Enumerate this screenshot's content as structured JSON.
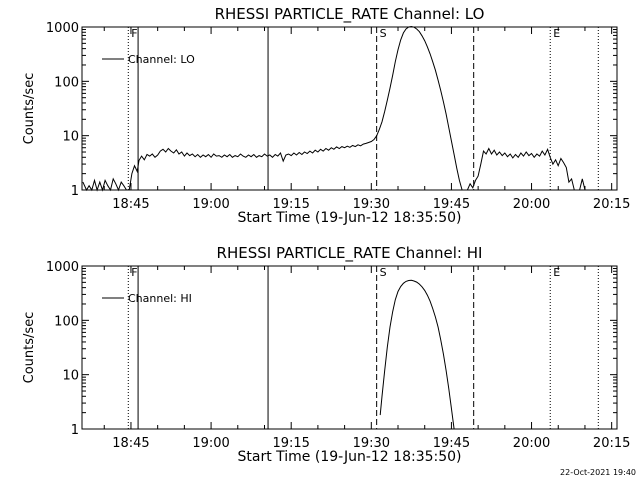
{
  "chart_data": [
    {
      "type": "line",
      "title": "RHESSI PARTICLE_RATE Channel: LO",
      "xlabel": "Start Time (19-Jun-12 18:35:50)",
      "ylabel": "Counts/sec",
      "y_scale": "log",
      "ylim": [
        1,
        1000
      ],
      "xlim": [
        "18:35:50",
        "20:16:00"
      ],
      "x_ticks": [
        "18:45",
        "19:00",
        "19:15",
        "19:30",
        "19:45",
        "20:00",
        "20:15"
      ],
      "y_ticks": [
        "1",
        "10",
        "100",
        "1000"
      ],
      "legend": {
        "position": "top-left",
        "entries": [
          "Channel: LO"
        ]
      },
      "markers": [
        {
          "label": "F",
          "time": "18:44:30",
          "style": "dotted"
        },
        {
          "label": "",
          "time": "18:46:20",
          "style": "solid"
        },
        {
          "label": "",
          "time": "19:10:40",
          "style": "solid"
        },
        {
          "label": "S",
          "time": "19:31:00",
          "style": "dashed"
        },
        {
          "label": "",
          "time": "19:49:10",
          "style": "dashed"
        },
        {
          "label": "E",
          "time": "20:03:30",
          "style": "dotted"
        },
        {
          "label": "",
          "time": "20:12:30",
          "style": "dotted"
        }
      ],
      "series": [
        {
          "name": "Channel: LO",
          "points": [
            [
              "18:36:00",
              1.4
            ],
            [
              "18:36:40",
              1
            ],
            [
              "18:37:10",
              1.2
            ],
            [
              "18:37:40",
              1
            ],
            [
              "18:38:10",
              1.5
            ],
            [
              "18:38:40",
              1
            ],
            [
              "18:39:10",
              1.4
            ],
            [
              "18:39:40",
              1
            ],
            [
              "18:40:10",
              1.5
            ],
            [
              "18:40:40",
              1.2
            ],
            [
              "18:41:10",
              1
            ],
            [
              "18:41:40",
              1.6
            ],
            [
              "18:42:10",
              1.3
            ],
            [
              "18:42:40",
              1
            ],
            [
              "18:43:10",
              1.4
            ],
            [
              "18:43:40",
              1.2
            ],
            [
              "18:44:10",
              1
            ],
            [
              "18:44:40",
              1
            ],
            [
              "18:45:10",
              2
            ],
            [
              "18:45:40",
              2.8
            ],
            [
              "18:46:10",
              2.2
            ],
            [
              "18:46:30",
              3.5
            ],
            [
              "18:47:00",
              4.2
            ],
            [
              "18:47:30",
              3.6
            ],
            [
              "18:48:00",
              4.5
            ],
            [
              "18:48:30",
              4.2
            ],
            [
              "18:49:00",
              4.6
            ],
            [
              "18:49:30",
              4
            ],
            [
              "18:50:00",
              4.4
            ],
            [
              "18:50:30",
              5.2
            ],
            [
              "18:51:00",
              5.6
            ],
            [
              "18:51:30",
              5
            ],
            [
              "18:52:00",
              5.8
            ],
            [
              "18:52:30",
              5.2
            ],
            [
              "18:53:00",
              4.8
            ],
            [
              "18:53:30",
              5.5
            ],
            [
              "18:54:00",
              4.6
            ],
            [
              "18:54:30",
              5
            ],
            [
              "18:55:00",
              4.2
            ],
            [
              "18:55:30",
              4.8
            ],
            [
              "18:56:00",
              4.3
            ],
            [
              "18:56:30",
              4.6
            ],
            [
              "18:57:00",
              4.1
            ],
            [
              "18:57:30",
              4.5
            ],
            [
              "18:58:00",
              4
            ],
            [
              "18:58:30",
              4.4
            ],
            [
              "18:59:00",
              4.1
            ],
            [
              "18:59:30",
              4.5
            ],
            [
              "19:00:00",
              4
            ],
            [
              "19:00:30",
              4.6
            ],
            [
              "19:01:00",
              4.2
            ],
            [
              "19:01:30",
              4.3
            ],
            [
              "19:02:00",
              4
            ],
            [
              "19:02:30",
              4.4
            ],
            [
              "19:03:00",
              4.1
            ],
            [
              "19:03:30",
              4.5
            ],
            [
              "19:04:00",
              4
            ],
            [
              "19:04:30",
              4.3
            ],
            [
              "19:05:00",
              4.1
            ],
            [
              "19:05:30",
              4.6
            ],
            [
              "19:06:00",
              4.2
            ],
            [
              "19:06:30",
              4
            ],
            [
              "19:07:00",
              4.4
            ],
            [
              "19:07:30",
              4.1
            ],
            [
              "19:08:00",
              4.5
            ],
            [
              "19:08:30",
              4
            ],
            [
              "19:09:00",
              4.3
            ],
            [
              "19:09:30",
              4.1
            ],
            [
              "19:10:00",
              4.6
            ],
            [
              "19:10:30",
              4.2
            ],
            [
              "19:11:00",
              4.4
            ],
            [
              "19:11:30",
              4
            ],
            [
              "19:12:00",
              4.5
            ],
            [
              "19:12:30",
              4.2
            ],
            [
              "19:13:00",
              4.8
            ],
            [
              "19:13:30",
              3.4
            ],
            [
              "19:14:00",
              4.4
            ],
            [
              "19:14:30",
              4.6
            ],
            [
              "19:15:00",
              4.3
            ],
            [
              "19:15:30",
              4.8
            ],
            [
              "19:16:00",
              4.4
            ],
            [
              "19:16:30",
              4.9
            ],
            [
              "19:17:00",
              4.5
            ],
            [
              "19:17:30",
              5
            ],
            [
              "19:18:00",
              4.7
            ],
            [
              "19:18:30",
              5.2
            ],
            [
              "19:19:00",
              4.8
            ],
            [
              "19:19:30",
              5.4
            ],
            [
              "19:20:00",
              5
            ],
            [
              "19:20:30",
              5.6
            ],
            [
              "19:21:00",
              5.2
            ],
            [
              "19:21:30",
              5.8
            ],
            [
              "19:22:00",
              5.4
            ],
            [
              "19:22:30",
              6
            ],
            [
              "19:23:00",
              5.6
            ],
            [
              "19:23:30",
              6.2
            ],
            [
              "19:24:00",
              5.8
            ],
            [
              "19:24:30",
              6.3
            ],
            [
              "19:25:00",
              6
            ],
            [
              "19:25:30",
              6.4
            ],
            [
              "19:26:00",
              6.1
            ],
            [
              "19:26:30",
              6.6
            ],
            [
              "19:27:00",
              6.3
            ],
            [
              "19:27:30",
              6.8
            ],
            [
              "19:28:00",
              6.5
            ],
            [
              "19:28:30",
              7
            ],
            [
              "19:29:00",
              7.2
            ],
            [
              "19:29:30",
              7.5
            ],
            [
              "19:30:00",
              7.8
            ],
            [
              "19:30:30",
              8.5
            ],
            [
              "19:31:00",
              10
            ],
            [
              "19:31:30",
              13
            ],
            [
              "19:32:00",
              18
            ],
            [
              "19:32:30",
              28
            ],
            [
              "19:33:00",
              45
            ],
            [
              "19:33:30",
              75
            ],
            [
              "19:34:00",
              130
            ],
            [
              "19:34:30",
              230
            ],
            [
              "19:35:00",
              380
            ],
            [
              "19:35:30",
              580
            ],
            [
              "19:36:00",
              780
            ],
            [
              "19:36:30",
              920
            ],
            [
              "19:37:00",
              1000
            ],
            [
              "19:37:30",
              1020
            ],
            [
              "19:38:00",
              990
            ],
            [
              "19:38:30",
              920
            ],
            [
              "19:39:00",
              820
            ],
            [
              "19:39:30",
              690
            ],
            [
              "19:40:00",
              560
            ],
            [
              "19:40:30",
              430
            ],
            [
              "19:41:00",
              320
            ],
            [
              "19:41:30",
              230
            ],
            [
              "19:42:00",
              160
            ],
            [
              "19:42:30",
              105
            ],
            [
              "19:43:00",
              68
            ],
            [
              "19:43:30",
              42
            ],
            [
              "19:44:00",
              25
            ],
            [
              "19:44:30",
              14
            ],
            [
              "19:45:00",
              8
            ],
            [
              "19:45:30",
              4.5
            ],
            [
              "19:46:00",
              2.5
            ],
            [
              "19:46:30",
              1.5
            ],
            [
              "19:47:00",
              1
            ],
            [
              "19:48:00",
              1
            ],
            [
              "19:48:30",
              1.3
            ],
            [
              "19:49:00",
              1.1
            ],
            [
              "19:49:30",
              1.5
            ],
            [
              "19:50:00",
              1.8
            ],
            [
              "19:50:30",
              3
            ],
            [
              "19:51:00",
              5.2
            ],
            [
              "19:51:30",
              4.6
            ],
            [
              "19:52:00",
              5.8
            ],
            [
              "19:52:30",
              4.6
            ],
            [
              "19:53:00",
              5.4
            ],
            [
              "19:53:30",
              4.4
            ],
            [
              "19:54:00",
              5
            ],
            [
              "19:54:30",
              4.3
            ],
            [
              "19:55:00",
              4.8
            ],
            [
              "19:55:30",
              4.1
            ],
            [
              "19:56:00",
              4.6
            ],
            [
              "19:56:30",
              3.9
            ],
            [
              "19:57:00",
              4.5
            ],
            [
              "19:57:30",
              4
            ],
            [
              "19:58:00",
              4.8
            ],
            [
              "19:58:30",
              4.2
            ],
            [
              "19:59:00",
              5
            ],
            [
              "19:59:30",
              4.3
            ],
            [
              "20:00:00",
              4.7
            ],
            [
              "20:00:30",
              4
            ],
            [
              "20:01:00",
              4.6
            ],
            [
              "20:01:30",
              4.2
            ],
            [
              "20:02:00",
              5.2
            ],
            [
              "20:02:30",
              4.4
            ],
            [
              "20:03:00",
              5.6
            ],
            [
              "20:03:30",
              4
            ],
            [
              "20:04:00",
              3
            ],
            [
              "20:04:30",
              3.6
            ],
            [
              "20:05:00",
              2.8
            ],
            [
              "20:05:30",
              3.8
            ],
            [
              "20:06:00",
              3.2
            ],
            [
              "20:06:30",
              2.6
            ],
            [
              "20:07:00",
              1.4
            ],
            [
              "20:07:30",
              1.6
            ],
            [
              "20:08:00",
              1
            ],
            [
              "20:09:00",
              1
            ],
            [
              "20:09:30",
              1.6
            ],
            [
              "20:10:00",
              1
            ]
          ]
        }
      ]
    },
    {
      "type": "line",
      "title": "RHESSI PARTICLE_RATE Channel: HI",
      "xlabel": "Start Time (19-Jun-12 18:35:50)",
      "ylabel": "Counts/sec",
      "y_scale": "log",
      "ylim": [
        1,
        1000
      ],
      "xlim": [
        "18:35:50",
        "20:16:00"
      ],
      "x_ticks": [
        "18:45",
        "19:00",
        "19:15",
        "19:30",
        "19:45",
        "20:00",
        "20:15"
      ],
      "y_ticks": [
        "1",
        "10",
        "100",
        "1000"
      ],
      "legend": {
        "position": "top-left",
        "entries": [
          "Channel: HI"
        ]
      },
      "markers": [
        {
          "label": "F",
          "time": "18:44:30",
          "style": "dotted"
        },
        {
          "label": "",
          "time": "18:46:20",
          "style": "solid"
        },
        {
          "label": "",
          "time": "19:10:40",
          "style": "solid"
        },
        {
          "label": "S",
          "time": "19:31:00",
          "style": "dashed"
        },
        {
          "label": "",
          "time": "19:49:10",
          "style": "dashed"
        },
        {
          "label": "E",
          "time": "20:03:30",
          "style": "dotted"
        },
        {
          "label": "",
          "time": "20:12:30",
          "style": "dotted"
        }
      ],
      "series": [
        {
          "name": "Channel: HI",
          "points": [
            [
              "19:31:40",
              1.8
            ],
            [
              "19:32:00",
              4
            ],
            [
              "19:32:30",
              12
            ],
            [
              "19:33:00",
              32
            ],
            [
              "19:33:30",
              75
            ],
            [
              "19:34:00",
              145
            ],
            [
              "19:34:30",
              240
            ],
            [
              "19:35:00",
              340
            ],
            [
              "19:35:30",
              420
            ],
            [
              "19:36:00",
              480
            ],
            [
              "19:36:30",
              520
            ],
            [
              "19:37:00",
              540
            ],
            [
              "19:37:30",
              545
            ],
            [
              "19:38:00",
              530
            ],
            [
              "19:38:30",
              505
            ],
            [
              "19:39:00",
              465
            ],
            [
              "19:39:30",
              415
            ],
            [
              "19:40:00",
              355
            ],
            [
              "19:40:30",
              290
            ],
            [
              "19:41:00",
              225
            ],
            [
              "19:41:30",
              165
            ],
            [
              "19:42:00",
              115
            ],
            [
              "19:42:30",
              75
            ],
            [
              "19:43:00",
              44
            ],
            [
              "19:43:30",
              24
            ],
            [
              "19:44:00",
              12
            ],
            [
              "19:44:30",
              5.5
            ],
            [
              "19:45:00",
              2.4
            ],
            [
              "19:45:30",
              1
            ]
          ]
        }
      ]
    }
  ],
  "footer": {
    "timestamp": "22-Oct-2021 19:40"
  }
}
